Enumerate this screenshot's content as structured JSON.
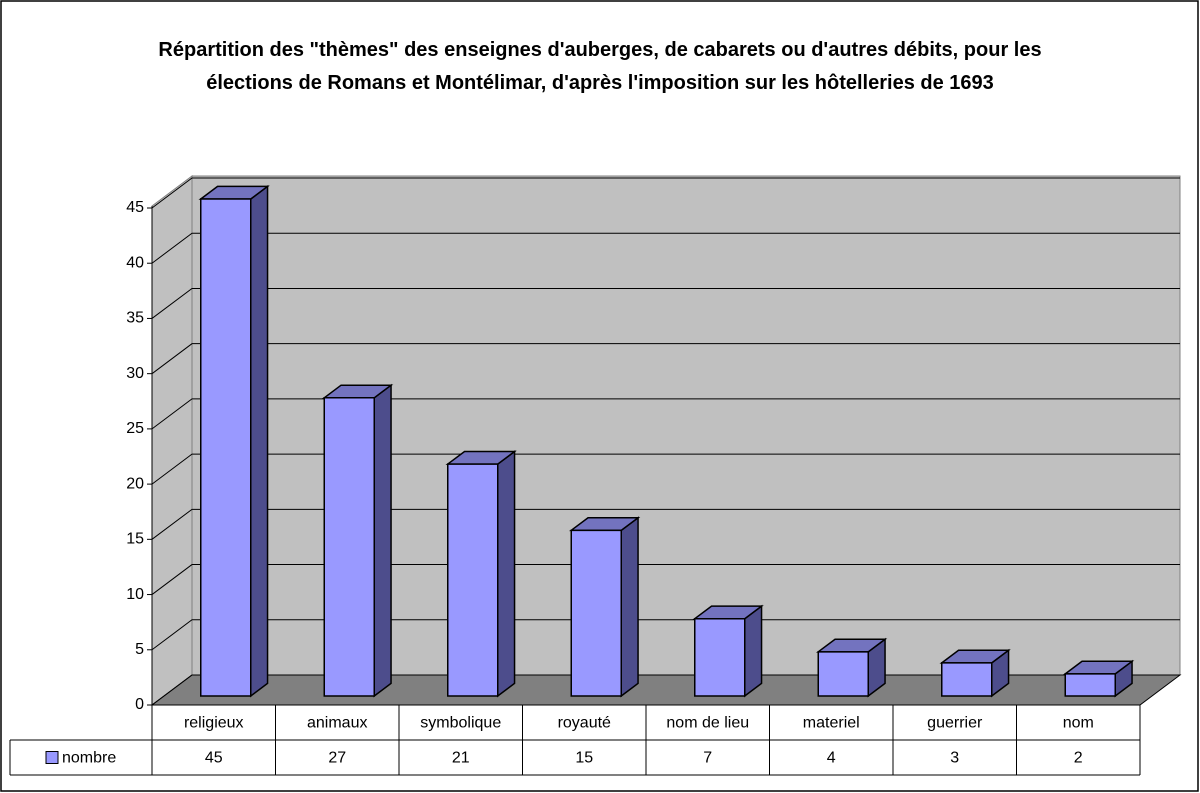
{
  "chart_data": {
    "type": "bar3d",
    "title": "Répartition des \"thèmes\" des enseignes d'auberges, de cabarets ou d'autres débits, pour les élections de Romans et Montélimar, d'après l'imposition sur les hôtelleries de 1693",
    "categories": [
      "religieux",
      "animaux",
      "symbolique",
      "royauté",
      "nom de lieu",
      "materiel",
      "guerrier",
      "nom"
    ],
    "series": [
      {
        "name": "nombre",
        "color": "#9999ff",
        "values": [
          45,
          27,
          21,
          15,
          7,
          4,
          3,
          2
        ]
      }
    ],
    "ylim": [
      0,
      45
    ],
    "yticks": [
      0,
      5,
      10,
      15,
      20,
      25,
      30,
      35,
      40,
      45
    ],
    "grid": true,
    "data_table": true
  }
}
